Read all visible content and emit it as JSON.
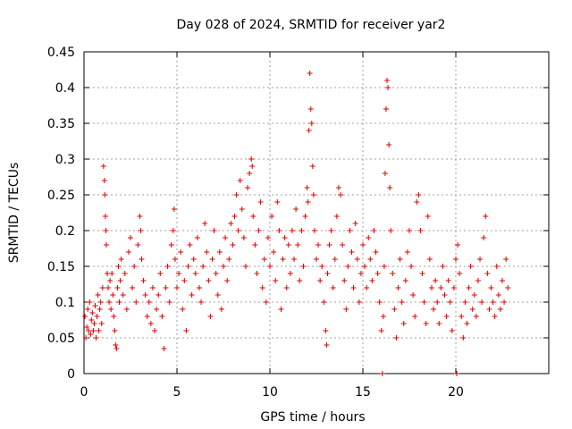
{
  "chart_data": {
    "type": "scatter",
    "title": "Day 028 of 2024, SRMTID for receiver yar2",
    "xlabel": "GPS time / hours",
    "ylabel": "SRMTID / TECUs",
    "xlim": [
      0,
      25
    ],
    "ylim": [
      0,
      0.45
    ],
    "xticks": [
      0,
      5,
      10,
      15,
      20
    ],
    "yticks": [
      0,
      0.05,
      0.1,
      0.15,
      0.2,
      0.25,
      0.3,
      0.35,
      0.4,
      0.45
    ],
    "xtick_labels": [
      "0",
      "5",
      "10",
      "15",
      "20"
    ],
    "ytick_labels": [
      "0",
      "0.05",
      "0.1",
      "0.15",
      "0.2",
      "0.25",
      "0.3",
      "0.35",
      "0.4",
      "0.45"
    ],
    "grid": true,
    "marker": "+",
    "color": "#e00000",
    "series": [
      {
        "name": "SRMTID",
        "points": [
          [
            0.05,
            0.08
          ],
          [
            0.1,
            0.05
          ],
          [
            0.15,
            0.065
          ],
          [
            0.2,
            0.09
          ],
          [
            0.25,
            0.06
          ],
          [
            0.3,
            0.1
          ],
          [
            0.35,
            0.055
          ],
          [
            0.4,
            0.075
          ],
          [
            0.45,
            0.085
          ],
          [
            0.5,
            0.06
          ],
          [
            0.55,
            0.07
          ],
          [
            0.6,
            0.095
          ],
          [
            0.65,
            0.05
          ],
          [
            0.7,
            0.08
          ],
          [
            0.75,
            0.11
          ],
          [
            0.8,
            0.06
          ],
          [
            0.85,
            0.09
          ],
          [
            0.9,
            0.1
          ],
          [
            0.95,
            0.07
          ],
          [
            1.0,
            0.12
          ],
          [
            1.05,
            0.29
          ],
          [
            1.1,
            0.27
          ],
          [
            1.12,
            0.25
          ],
          [
            1.15,
            0.22
          ],
          [
            1.18,
            0.2
          ],
          [
            1.2,
            0.18
          ],
          [
            1.25,
            0.14
          ],
          [
            1.3,
            0.12
          ],
          [
            1.35,
            0.1
          ],
          [
            1.4,
            0.13
          ],
          [
            1.45,
            0.09
          ],
          [
            1.5,
            0.14
          ],
          [
            1.55,
            0.11
          ],
          [
            1.6,
            0.08
          ],
          [
            1.65,
            0.06
          ],
          [
            1.7,
            0.04
          ],
          [
            1.75,
            0.035
          ],
          [
            1.8,
            0.12
          ],
          [
            1.85,
            0.15
          ],
          [
            1.9,
            0.1
          ],
          [
            1.95,
            0.13
          ],
          [
            2.0,
            0.16
          ],
          [
            2.1,
            0.11
          ],
          [
            2.2,
            0.14
          ],
          [
            2.3,
            0.09
          ],
          [
            2.4,
            0.17
          ],
          [
            2.5,
            0.19
          ],
          [
            2.6,
            0.12
          ],
          [
            2.7,
            0.15
          ],
          [
            2.8,
            0.1
          ],
          [
            2.9,
            0.18
          ],
          [
            3.0,
            0.22
          ],
          [
            3.05,
            0.2
          ],
          [
            3.1,
            0.16
          ],
          [
            3.2,
            0.13
          ],
          [
            3.3,
            0.11
          ],
          [
            3.4,
            0.08
          ],
          [
            3.5,
            0.1
          ],
          [
            3.6,
            0.07
          ],
          [
            3.7,
            0.12
          ],
          [
            3.8,
            0.06
          ],
          [
            3.9,
            0.09
          ],
          [
            4.0,
            0.11
          ],
          [
            4.1,
            0.14
          ],
          [
            4.2,
            0.08
          ],
          [
            4.3,
            0.035
          ],
          [
            4.4,
            0.12
          ],
          [
            4.5,
            0.15
          ],
          [
            4.6,
            0.1
          ],
          [
            4.7,
            0.18
          ],
          [
            4.8,
            0.2
          ],
          [
            4.85,
            0.23
          ],
          [
            4.9,
            0.16
          ],
          [
            5.0,
            0.12
          ],
          [
            5.1,
            0.14
          ],
          [
            5.2,
            0.17
          ],
          [
            5.3,
            0.09
          ],
          [
            5.4,
            0.13
          ],
          [
            5.5,
            0.06
          ],
          [
            5.6,
            0.15
          ],
          [
            5.7,
            0.18
          ],
          [
            5.8,
            0.11
          ],
          [
            5.9,
            0.16
          ],
          [
            6.0,
            0.14
          ],
          [
            6.1,
            0.19
          ],
          [
            6.2,
            0.12
          ],
          [
            6.3,
            0.1
          ],
          [
            6.4,
            0.15
          ],
          [
            6.5,
            0.21
          ],
          [
            6.6,
            0.17
          ],
          [
            6.7,
            0.13
          ],
          [
            6.8,
            0.08
          ],
          [
            6.9,
            0.16
          ],
          [
            7.0,
            0.2
          ],
          [
            7.1,
            0.14
          ],
          [
            7.2,
            0.11
          ],
          [
            7.3,
            0.17
          ],
          [
            7.4,
            0.09
          ],
          [
            7.5,
            0.15
          ],
          [
            7.6,
            0.19
          ],
          [
            7.7,
            0.13
          ],
          [
            7.8,
            0.16
          ],
          [
            7.9,
            0.21
          ],
          [
            8.0,
            0.18
          ],
          [
            8.1,
            0.22
          ],
          [
            8.2,
            0.25
          ],
          [
            8.3,
            0.2
          ],
          [
            8.4,
            0.27
          ],
          [
            8.5,
            0.23
          ],
          [
            8.6,
            0.19
          ],
          [
            8.7,
            0.15
          ],
          [
            8.8,
            0.26
          ],
          [
            8.9,
            0.28
          ],
          [
            9.0,
            0.3
          ],
          [
            9.05,
            0.29
          ],
          [
            9.1,
            0.22
          ],
          [
            9.2,
            0.18
          ],
          [
            9.3,
            0.14
          ],
          [
            9.4,
            0.2
          ],
          [
            9.5,
            0.24
          ],
          [
            9.6,
            0.12
          ],
          [
            9.7,
            0.16
          ],
          [
            9.8,
            0.1
          ],
          [
            9.9,
            0.19
          ],
          [
            10.0,
            0.15
          ],
          [
            10.1,
            0.22
          ],
          [
            10.2,
            0.17
          ],
          [
            10.3,
            0.13
          ],
          [
            10.4,
            0.24
          ],
          [
            10.5,
            0.2
          ],
          [
            10.6,
            0.09
          ],
          [
            10.7,
            0.16
          ],
          [
            10.8,
            0.19
          ],
          [
            10.9,
            0.12
          ],
          [
            11.0,
            0.18
          ],
          [
            11.1,
            0.14
          ],
          [
            11.2,
            0.2
          ],
          [
            11.3,
            0.16
          ],
          [
            11.4,
            0.23
          ],
          [
            11.5,
            0.18
          ],
          [
            11.6,
            0.13
          ],
          [
            11.7,
            0.2
          ],
          [
            11.8,
            0.15
          ],
          [
            11.9,
            0.22
          ],
          [
            12.0,
            0.26
          ],
          [
            12.05,
            0.24
          ],
          [
            12.1,
            0.34
          ],
          [
            12.15,
            0.42
          ],
          [
            12.2,
            0.37
          ],
          [
            12.25,
            0.35
          ],
          [
            12.3,
            0.29
          ],
          [
            12.35,
            0.25
          ],
          [
            12.4,
            0.2
          ],
          [
            12.5,
            0.16
          ],
          [
            12.6,
            0.18
          ],
          [
            12.7,
            0.13
          ],
          [
            12.8,
            0.15
          ],
          [
            12.9,
            0.1
          ],
          [
            13.0,
            0.06
          ],
          [
            13.05,
            0.04
          ],
          [
            13.1,
            0.14
          ],
          [
            13.2,
            0.18
          ],
          [
            13.3,
            0.2
          ],
          [
            13.4,
            0.12
          ],
          [
            13.5,
            0.16
          ],
          [
            13.6,
            0.22
          ],
          [
            13.7,
            0.26
          ],
          [
            13.8,
            0.25
          ],
          [
            13.9,
            0.18
          ],
          [
            14.0,
            0.13
          ],
          [
            14.1,
            0.09
          ],
          [
            14.2,
            0.15
          ],
          [
            14.3,
            0.2
          ],
          [
            14.4,
            0.17
          ],
          [
            14.5,
            0.12
          ],
          [
            14.6,
            0.21
          ],
          [
            14.7,
            0.16
          ],
          [
            14.8,
            0.1
          ],
          [
            14.9,
            0.14
          ],
          [
            15.0,
            0.18
          ],
          [
            15.1,
            0.15
          ],
          [
            15.2,
            0.12
          ],
          [
            15.3,
            0.19
          ],
          [
            15.4,
            0.16
          ],
          [
            15.5,
            0.13
          ],
          [
            15.6,
            0.2
          ],
          [
            15.7,
            0.17
          ],
          [
            15.8,
            0.14
          ],
          [
            15.9,
            0.1
          ],
          [
            16.0,
            0.06
          ],
          [
            16.05,
            0.0
          ],
          [
            16.1,
            0.08
          ],
          [
            16.15,
            0.15
          ],
          [
            16.2,
            0.28
          ],
          [
            16.25,
            0.37
          ],
          [
            16.3,
            0.41
          ],
          [
            16.35,
            0.4
          ],
          [
            16.4,
            0.32
          ],
          [
            16.45,
            0.26
          ],
          [
            16.5,
            0.2
          ],
          [
            16.6,
            0.14
          ],
          [
            16.7,
            0.09
          ],
          [
            16.8,
            0.05
          ],
          [
            16.9,
            0.12
          ],
          [
            17.0,
            0.16
          ],
          [
            17.1,
            0.1
          ],
          [
            17.2,
            0.07
          ],
          [
            17.3,
            0.13
          ],
          [
            17.4,
            0.17
          ],
          [
            17.5,
            0.2
          ],
          [
            17.6,
            0.15
          ],
          [
            17.7,
            0.11
          ],
          [
            17.8,
            0.08
          ],
          [
            17.9,
            0.24
          ],
          [
            18.0,
            0.25
          ],
          [
            18.1,
            0.2
          ],
          [
            18.2,
            0.14
          ],
          [
            18.3,
            0.1
          ],
          [
            18.4,
            0.07
          ],
          [
            18.5,
            0.22
          ],
          [
            18.6,
            0.16
          ],
          [
            18.7,
            0.12
          ],
          [
            18.8,
            0.09
          ],
          [
            18.9,
            0.13
          ],
          [
            19.0,
            0.1
          ],
          [
            19.1,
            0.07
          ],
          [
            19.2,
            0.12
          ],
          [
            19.3,
            0.15
          ],
          [
            19.4,
            0.11
          ],
          [
            19.5,
            0.08
          ],
          [
            19.6,
            0.13
          ],
          [
            19.7,
            0.1
          ],
          [
            19.8,
            0.06
          ],
          [
            19.9,
            0.12
          ],
          [
            20.0,
            0.16
          ],
          [
            20.05,
            0.0
          ],
          [
            20.1,
            0.18
          ],
          [
            20.2,
            0.14
          ],
          [
            20.3,
            0.08
          ],
          [
            20.4,
            0.05
          ],
          [
            20.5,
            0.1
          ],
          [
            20.6,
            0.07
          ],
          [
            20.7,
            0.12
          ],
          [
            20.8,
            0.15
          ],
          [
            20.9,
            0.09
          ],
          [
            21.0,
            0.11
          ],
          [
            21.1,
            0.08
          ],
          [
            21.2,
            0.13
          ],
          [
            21.3,
            0.16
          ],
          [
            21.4,
            0.1
          ],
          [
            21.5,
            0.19
          ],
          [
            21.6,
            0.22
          ],
          [
            21.7,
            0.14
          ],
          [
            21.8,
            0.09
          ],
          [
            21.9,
            0.12
          ],
          [
            22.0,
            0.1
          ],
          [
            22.1,
            0.08
          ],
          [
            22.2,
            0.15
          ],
          [
            22.3,
            0.11
          ],
          [
            22.4,
            0.09
          ],
          [
            22.5,
            0.13
          ],
          [
            22.6,
            0.1
          ],
          [
            22.7,
            0.16
          ],
          [
            22.8,
            0.12
          ]
        ]
      }
    ]
  }
}
